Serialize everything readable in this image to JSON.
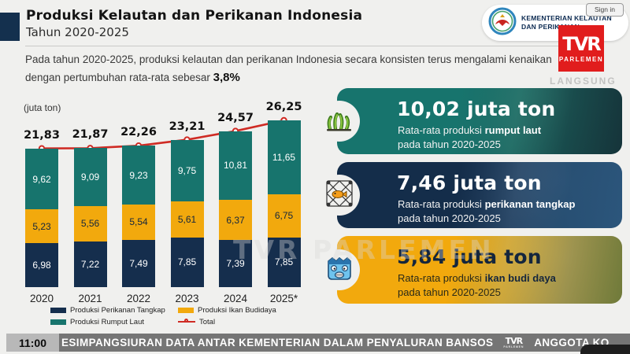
{
  "header": {
    "title": "Produksi Kelautan dan Perikanan Indonesia",
    "subtitle": "Tahun 2020-2025",
    "intro_text": "Pada tahun 2020-2025, produksi kelautan dan perikanan Indonesia secara konsisten terus mengalami kenaikan dengan pertumbuhan rata-rata sebesar ",
    "intro_bold": "3,8%"
  },
  "branding": {
    "ministry_name": "KEMENTERIAN KELAUTAN DAN PERIKANAN",
    "tvr_logo_main": "TVR",
    "tvr_logo_sub": "PARLEMEN",
    "sign_in": "Sign in",
    "langsung": "LANGSUNG",
    "watermark": "TVR PARLEMEN"
  },
  "chart_data": {
    "type": "bar",
    "stacked": true,
    "unit_label": "(juta ton)",
    "categories": [
      "2020",
      "2021",
      "2022",
      "2023",
      "2024",
      "2025*"
    ],
    "series": [
      {
        "name": "Produksi Perikanan Tangkap",
        "color": "#152e4d",
        "label_color": "#ffffff",
        "values": [
          6.98,
          7.22,
          7.49,
          7.85,
          7.39,
          7.85
        ],
        "labels": [
          "6,98",
          "7,22",
          "7,49",
          "7,85",
          "7,39",
          "7,85"
        ]
      },
      {
        "name": "Produksi Ikan Budidaya",
        "color": "#f2a90d",
        "label_color": "#14263d",
        "values": [
          5.23,
          5.56,
          5.54,
          5.61,
          6.37,
          6.75
        ],
        "labels": [
          "5,23",
          "5,56",
          "5,54",
          "5,61",
          "6,37",
          "6,75"
        ]
      },
      {
        "name": "Produksi Rumput Laut",
        "color": "#17746d",
        "label_color": "#ffffff",
        "values": [
          9.62,
          9.09,
          9.23,
          9.75,
          10.81,
          11.65
        ],
        "labels": [
          "9,62",
          "9,09",
          "9,23",
          "9,75",
          "10,81",
          "11,65"
        ]
      }
    ],
    "totals": [
      21.83,
      21.87,
      22.26,
      23.21,
      24.57,
      26.25
    ],
    "total_labels": [
      "21,83",
      "21,87",
      "22,26",
      "23,21",
      "24,57",
      "26,25"
    ],
    "line_series": {
      "name": "Total",
      "color": "#cf2b24"
    },
    "legend_position": "bottom",
    "grid": false
  },
  "cards": [
    {
      "value": "10,02 juta ton",
      "desc_pre": "Rata-rata produksi ",
      "desc_bold": "rumput laut",
      "desc_line2": "pada tahun 2020-2025",
      "icon": "seaweed-icon",
      "color": "#17746d"
    },
    {
      "value": "7,46 juta ton",
      "desc_pre": "Rata-rata produksi ",
      "desc_bold": "perikanan tangkap",
      "desc_line2": "pada tahun 2020-2025",
      "icon": "fishing-net-icon",
      "color": "#142d4a"
    },
    {
      "value": "5,84 juta ton",
      "desc_pre": "Rata-rata produksi ",
      "desc_bold": "ikan budi daya",
      "desc_line2": "pada tahun 2020-2025",
      "icon": "fish-icon",
      "color": "#f2a90d"
    }
  ],
  "ticker": {
    "time": "11:00",
    "headline": "ESIMPANGSIURAN DATA ANTAR KEMENTERIAN DALAM PENYALURAN BANSOS",
    "next_headline": "ANGGOTA KO"
  }
}
